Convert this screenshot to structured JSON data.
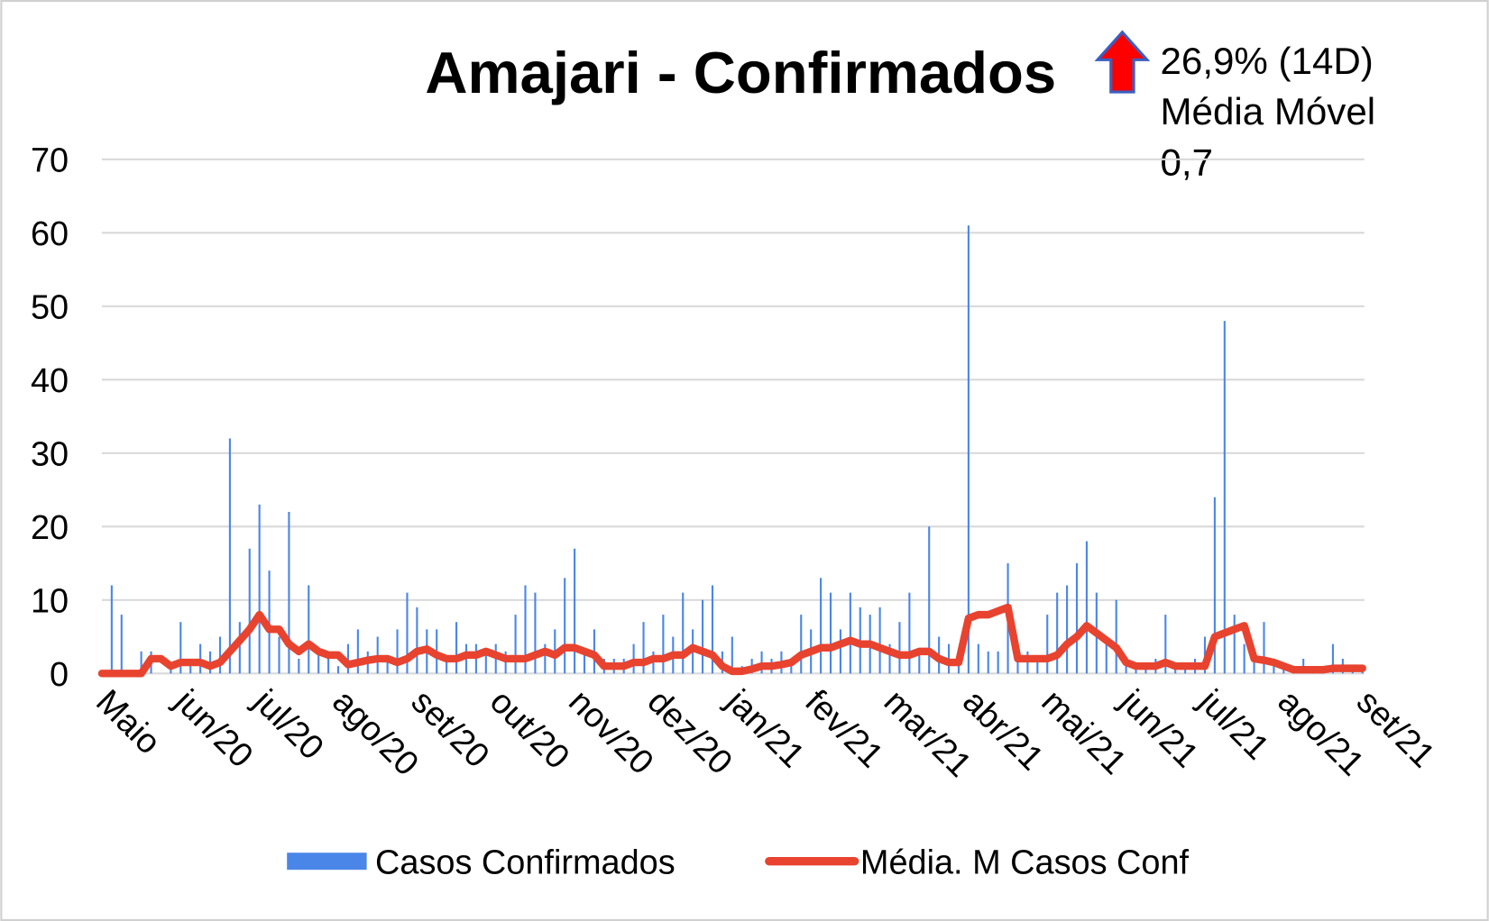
{
  "chart_data": {
    "type": "bar_line",
    "title": "Amajari  - Confirmados",
    "annotations": [
      "26,9% (14D)",
      "Média Móvel",
      "0,7"
    ],
    "categories": [
      "Maio",
      null,
      null,
      null,
      null,
      null,
      null,
      null,
      "jun/20",
      null,
      null,
      null,
      null,
      null,
      null,
      null,
      "jul/20",
      null,
      null,
      null,
      null,
      null,
      null,
      null,
      "ago/20",
      null,
      null,
      null,
      null,
      null,
      null,
      null,
      "set/20",
      null,
      null,
      null,
      null,
      null,
      null,
      null,
      "out/20",
      null,
      null,
      null,
      null,
      null,
      null,
      null,
      "nov/20",
      null,
      null,
      null,
      null,
      null,
      null,
      null,
      "dez/20",
      null,
      null,
      null,
      null,
      null,
      null,
      null,
      "jan/21",
      null,
      null,
      null,
      null,
      null,
      null,
      null,
      "fev/21",
      null,
      null,
      null,
      null,
      null,
      null,
      null,
      "mar/21",
      null,
      null,
      null,
      null,
      null,
      null,
      null,
      "abr/21",
      null,
      null,
      null,
      null,
      null,
      null,
      null,
      "mai/21",
      null,
      null,
      null,
      null,
      null,
      null,
      null,
      "jun/21",
      null,
      null,
      null,
      null,
      null,
      null,
      null,
      "jul/21",
      null,
      null,
      null,
      null,
      null,
      null,
      null,
      "ago/21",
      null,
      null,
      null,
      null,
      null,
      null,
      null,
      "set/21"
    ],
    "series": [
      {
        "name": "Casos Confirmados",
        "color": "#4a86e8",
        "kind": "bar",
        "values": [
          0,
          12,
          8,
          0,
          3,
          3,
          0,
          1,
          7,
          2,
          4,
          3,
          5,
          32,
          7,
          17,
          23,
          14,
          5,
          22,
          2,
          12,
          3,
          2,
          1,
          4,
          6,
          3,
          5,
          2,
          6,
          11,
          9,
          6,
          6,
          2,
          7,
          4,
          4,
          3,
          4,
          3,
          8,
          12,
          11,
          4,
          6,
          13,
          17,
          3,
          6,
          2,
          2,
          2,
          4,
          7,
          3,
          8,
          5,
          11,
          6,
          10,
          12,
          3,
          5,
          1,
          2,
          3,
          2,
          3,
          2,
          8,
          6,
          13,
          11,
          6,
          11,
          9,
          8,
          9,
          4,
          7,
          11,
          3,
          20,
          5,
          4,
          2,
          61,
          4,
          3,
          3,
          15,
          3,
          3,
          2,
          8,
          11,
          12,
          15,
          18,
          11,
          5,
          10,
          2,
          1,
          1,
          2,
          8,
          1,
          1,
          2,
          5,
          24,
          48,
          8,
          4,
          2,
          7,
          1,
          1,
          1,
          2,
          1,
          1,
          4,
          2,
          1,
          1
        ]
      },
      {
        "name": "Média. M Casos Conf",
        "color": "#e8432f",
        "kind": "line",
        "values": [
          0,
          0,
          0,
          0,
          0,
          2,
          2,
          1,
          1.5,
          1.5,
          1.5,
          1,
          1.5,
          3,
          4.5,
          6,
          8,
          6,
          6,
          4,
          3,
          4,
          3,
          2.5,
          2.5,
          1.2,
          1.5,
          1.8,
          2,
          2,
          1.5,
          2,
          3,
          3.3,
          2.5,
          2,
          2,
          2.5,
          2.5,
          3,
          2.5,
          2,
          2,
          2,
          2.5,
          3,
          2.5,
          3.5,
          3.5,
          3,
          2.5,
          1,
          1,
          1,
          1.5,
          1.5,
          2,
          2,
          2.5,
          2.5,
          3.5,
          3,
          2.5,
          1,
          0.3,
          0.3,
          0.6,
          1,
          1,
          1.2,
          1.5,
          2.5,
          3,
          3.5,
          3.5,
          4,
          4.5,
          4,
          4,
          3.5,
          3,
          2.5,
          2.5,
          3,
          3,
          2,
          1.5,
          1.5,
          7.5,
          8,
          8,
          8.5,
          9,
          2,
          2,
          2,
          2,
          2.5,
          4,
          5,
          6.5,
          5.5,
          4.5,
          3.5,
          1.5,
          1,
          1,
          1,
          1.5,
          1,
          1,
          1,
          1,
          5,
          5.5,
          6,
          6.5,
          2,
          1.8,
          1.5,
          1,
          0.5,
          0.5,
          0.5,
          0.5,
          0.7,
          0.7,
          0.7,
          0.7
        ]
      }
    ],
    "ylim": [
      0,
      70
    ],
    "yticks": [
      0,
      10,
      20,
      30,
      40,
      50,
      60,
      70
    ],
    "grid": true,
    "legend": "bottom"
  }
}
